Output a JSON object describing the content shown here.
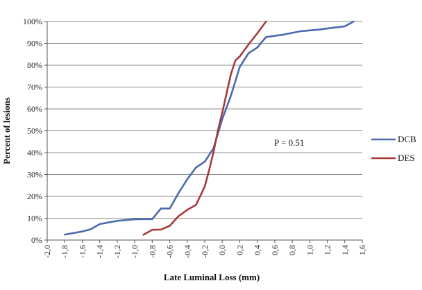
{
  "chart_data": {
    "type": "line",
    "xlabel": "Late Luminal Loss (mm)",
    "ylabel": "Percent of lesions",
    "xlim": [
      -2.0,
      1.6
    ],
    "ylim": [
      0,
      100
    ],
    "x_ticks": [
      -2.0,
      -1.8,
      -1.6,
      -1.4,
      -1.2,
      -1.0,
      -0.8,
      -0.6,
      -0.4,
      -0.2,
      0.0,
      0.2,
      0.4,
      0.6,
      0.8,
      1.0,
      1.2,
      1.4,
      1.6
    ],
    "x_tick_labels": [
      "-2,0",
      "-1,8",
      "-1,6",
      "-1,4",
      "-1,2",
      "-1,0",
      "-0,8",
      "-0,6",
      "-0,4",
      "-0,2",
      "0,0",
      "0,2",
      "0,4",
      "0,6",
      "0,8",
      "1,0",
      "1,2",
      "1,4",
      "1,6"
    ],
    "y_ticks": [
      0,
      10,
      20,
      30,
      40,
      50,
      60,
      70,
      80,
      90,
      100
    ],
    "y_tick_labels": [
      "0%",
      "10%",
      "20%",
      "30%",
      "40%",
      "50%",
      "60%",
      "70%",
      "80%",
      "90%",
      "100%"
    ],
    "grid": "horizontal",
    "legend_position": "right",
    "annotation": "P = 0.51",
    "series": [
      {
        "name": "DCB",
        "color": "#4a6aad",
        "points": [
          [
            -1.8,
            2.5
          ],
          [
            -1.6,
            3.9
          ],
          [
            -1.5,
            5.0
          ],
          [
            -1.4,
            7.3
          ],
          [
            -1.2,
            8.8
          ],
          [
            -1.0,
            9.5
          ],
          [
            -0.9,
            9.6
          ],
          [
            -0.8,
            9.6
          ],
          [
            -0.7,
            14.4
          ],
          [
            -0.6,
            14.4
          ],
          [
            -0.5,
            21.5
          ],
          [
            -0.4,
            27.8
          ],
          [
            -0.3,
            33.2
          ],
          [
            -0.2,
            35.8
          ],
          [
            -0.1,
            42.0
          ],
          [
            0.0,
            55.3
          ],
          [
            0.1,
            66.2
          ],
          [
            0.2,
            79.2
          ],
          [
            0.3,
            85.5
          ],
          [
            0.4,
            88.1
          ],
          [
            0.5,
            92.9
          ],
          [
            0.7,
            94.0
          ],
          [
            0.9,
            95.6
          ],
          [
            1.1,
            96.3
          ],
          [
            1.2,
            96.8
          ],
          [
            1.4,
            97.8
          ],
          [
            1.5,
            100
          ]
        ]
      },
      {
        "name": "DES",
        "color": "#a63a3a",
        "points": [
          [
            -0.9,
            2.4
          ],
          [
            -0.8,
            4.7
          ],
          [
            -0.7,
            4.8
          ],
          [
            -0.6,
            6.5
          ],
          [
            -0.5,
            10.9
          ],
          [
            -0.4,
            13.8
          ],
          [
            -0.3,
            16.1
          ],
          [
            -0.2,
            24.5
          ],
          [
            -0.15,
            32.0
          ],
          [
            -0.1,
            40.2
          ],
          [
            -0.05,
            50.0
          ],
          [
            0.0,
            58.3
          ],
          [
            0.05,
            67.2
          ],
          [
            0.1,
            76.0
          ],
          [
            0.15,
            82.2
          ],
          [
            0.2,
            84.0
          ],
          [
            0.3,
            89.5
          ],
          [
            0.4,
            94.6
          ],
          [
            0.5,
            100
          ]
        ]
      }
    ]
  }
}
